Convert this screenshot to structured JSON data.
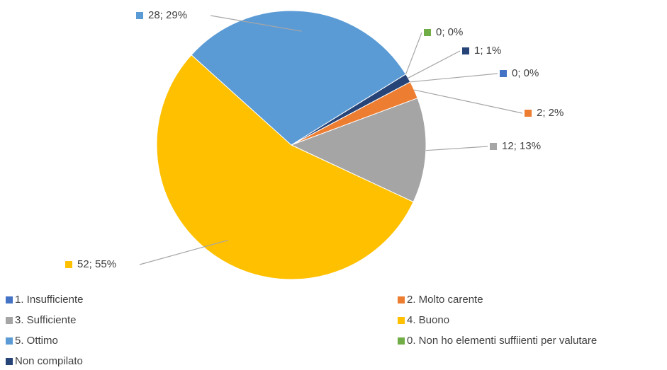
{
  "chart_data": {
    "type": "pie",
    "categories": [
      "1. Insufficiente",
      "2. Molto carente",
      "3. Sufficiente",
      "4. Buono",
      "5. Ottimo",
      "0. Non ho elementi suffiienti per valutare",
      "Non compilato"
    ],
    "values": [
      0,
      2,
      12,
      52,
      28,
      0,
      1
    ],
    "value_labels": [
      "0; 0%",
      "2; 2%",
      "12; 13%",
      "52; 55%",
      "28; 29%",
      "0; 0%",
      "1; 1%"
    ],
    "colors": [
      "#4472c4",
      "#ed7d31",
      "#a5a5a5",
      "#ffc000",
      "#5b9bd5",
      "#70ad47",
      "#264478"
    ],
    "legend": "bottom"
  }
}
